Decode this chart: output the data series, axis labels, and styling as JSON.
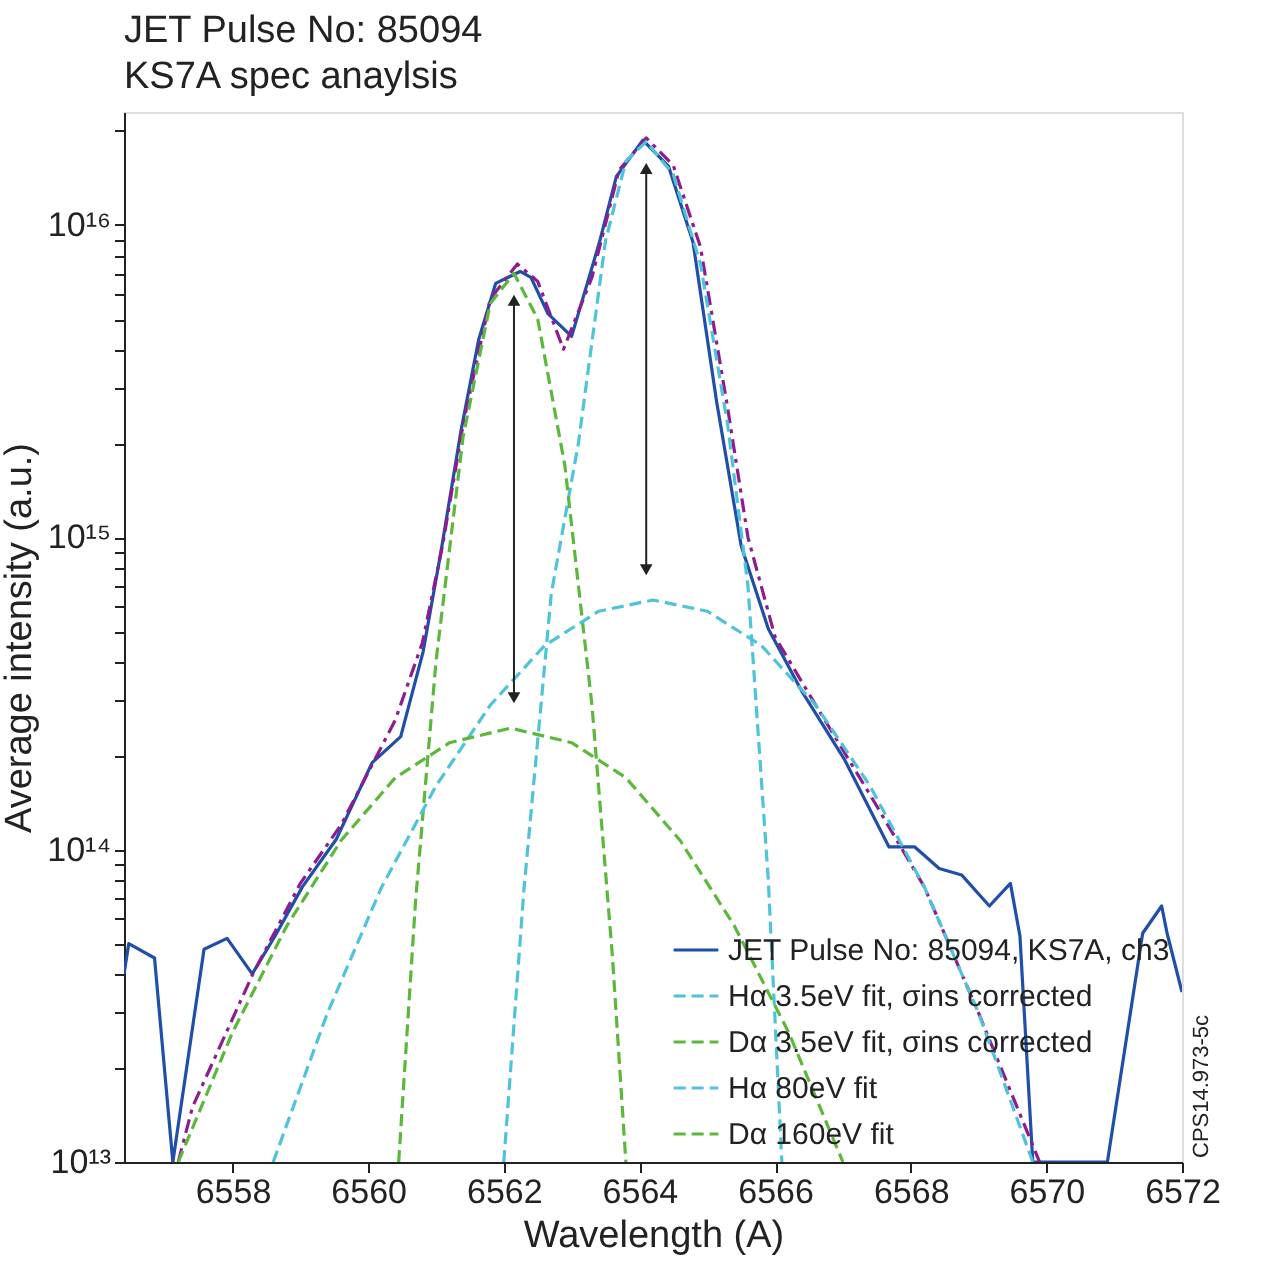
{
  "chart_data": {
    "type": "line",
    "title": "JET Pulse No: 85094",
    "subtitle": "KS7A spec anaylsis",
    "xlabel": "Wavelength (A)",
    "ylabel": "Average intensity (a.u.)",
    "log": "y",
    "grid": false,
    "legend": "bottom right",
    "xlim": [
      6556.4,
      6572
    ],
    "ylim": [
      10000000000000.0,
      2.3e+16
    ],
    "xticks": [
      6558,
      6560,
      6562,
      6564,
      6566,
      6568,
      6570,
      6572
    ],
    "yticks": [
      {
        "value": 10000000000000.0,
        "label": "10¹³"
      },
      {
        "value": 20000000000000.0,
        "label": null
      },
      {
        "value": 30000000000000.0,
        "label": null
      },
      {
        "value": 40000000000000.0,
        "label": null
      },
      {
        "value": 50000000000000.0,
        "label": null
      },
      {
        "value": 60000000000000.0,
        "label": null
      },
      {
        "value": 70000000000000.0,
        "label": null
      },
      {
        "value": 80000000000000.0,
        "label": null
      },
      {
        "value": 90000000000000.0,
        "label": null
      },
      {
        "value": 100000000000000.0,
        "label": "10¹⁴"
      },
      {
        "value": 200000000000000.0,
        "label": null
      },
      {
        "value": 300000000000000.0,
        "label": null
      },
      {
        "value": 400000000000000.0,
        "label": null
      },
      {
        "value": 500000000000000.0,
        "label": null
      },
      {
        "value": 600000000000000.0,
        "label": null
      },
      {
        "value": 700000000000000.0,
        "label": null
      },
      {
        "value": 800000000000000.0,
        "label": null
      },
      {
        "value": 900000000000000.0,
        "label": null
      },
      {
        "value": 1000000000000000.0,
        "label": "10¹⁵"
      },
      {
        "value": 2000000000000000.0,
        "label": null
      },
      {
        "value": 3000000000000000.0,
        "label": null
      },
      {
        "value": 4000000000000000.0,
        "label": null
      },
      {
        "value": 5000000000000000.0,
        "label": null
      },
      {
        "value": 6000000000000000.0,
        "label": null
      },
      {
        "value": 7000000000000000.0,
        "label": null
      },
      {
        "value": 8000000000000000.0,
        "label": null
      },
      {
        "value": 9000000000000000.0,
        "label": null
      },
      {
        "value": 1e+16,
        "label": "10¹⁶"
      },
      {
        "value": 2e+16,
        "label": null
      }
    ],
    "annotations": [
      "CPS14.973-5c"
    ],
    "series": [
      {
        "name": "JET Pulse No: 85094, KS7A, ch3",
        "line_style": "solid",
        "color": "#1f4fa8",
        "x": [
          6556.4,
          6556.47,
          6556.85,
          6557.12,
          6557.58,
          6557.92,
          6558.29,
          6558.63,
          6559.03,
          6559.53,
          6560.06,
          6560.48,
          6560.81,
          6561.07,
          6561.37,
          6561.63,
          6561.88,
          6562.24,
          6562.4,
          6562.65,
          6563.0,
          6563.41,
          6563.66,
          6564.05,
          6564.43,
          6564.79,
          6565.14,
          6565.5,
          6565.9,
          6566.4,
          6567.02,
          6567.68,
          6568.06,
          6568.42,
          6568.75,
          6569.16,
          6569.47,
          6569.61,
          6569.8,
          6570.9,
          6571.42,
          6571.7,
          6571.78,
          6572.0
        ],
        "values": [
          40000000000000.0,
          50000000000000.0,
          45000000000000.0,
          10000000000000.0,
          48000000000000.0,
          52000000000000.0,
          40000000000000.0,
          53000000000000.0,
          76000000000000.0,
          108000000000000.0,
          190000000000000.0,
          230000000000000.0,
          430000000000000.0,
          890000000000000.0,
          2200000000000000.0,
          4300000000000000.0,
          6500000000000000.0,
          7100000000000000.0,
          6800000000000000.0,
          5200000000000000.0,
          4400000000000000.0,
          8800000000000000.0,
          1.43e+16,
          1.87e+16,
          1.54e+16,
          8800000000000000.0,
          2700000000000000.0,
          940000000000000.0,
          510000000000000.0,
          320000000000000.0,
          195000000000000.0,
          102000000000000.0,
          102000000000000.0,
          87000000000000.0,
          83000000000000.0,
          66000000000000.0,
          78000000000000.0,
          53000000000000.0,
          10000000000000.0,
          10000000000000.0,
          54000000000000.0,
          66000000000000.0,
          54000000000000.0,
          35000000000000.0
        ]
      },
      {
        "line_style": "dashdot",
        "color": "#8e1c8e",
        "x": [
          6557.2,
          6557.41,
          6558.3,
          6559.0,
          6559.6,
          6560.4,
          6560.8,
          6561.1,
          6561.4,
          6561.8,
          6562.2,
          6562.5,
          6562.88,
          6563.3,
          6563.7,
          6564.1,
          6564.5,
          6564.9,
          6565.3,
          6565.6,
          6566.0,
          6566.6,
          6567.4,
          6568.2,
          6569.0,
          6569.9
        ],
        "values": [
          10000000000000.0,
          15000000000000.0,
          40000000000000.0,
          78000000000000.0,
          120000000000000.0,
          260000000000000.0,
          460000000000000.0,
          950000000000000.0,
          2300000000000000.0,
          5800000000000000.0,
          7500000000000000.0,
          6600000000000000.0,
          4000000000000000.0,
          6800000000000000.0,
          1.5e+16,
          1.9e+16,
          1.55e+16,
          8500000000000000.0,
          2600000000000000.0,
          1000000000000000.0,
          480000000000000.0,
          290000000000000.0,
          150000000000000.0,
          76000000000000.0,
          30000000000000.0,
          10000000000000.0
        ]
      },
      {
        "name": "Hα 3.5eV fit, σins corrected",
        "line_style": "dashed",
        "color": "#4ec3d9",
        "x": [
          6562.0,
          6562.3,
          6562.7,
          6563.1,
          6563.5,
          6563.8,
          6564.1,
          6564.5,
          6564.9,
          6565.3,
          6565.6,
          6565.9,
          6566.1
        ],
        "values": [
          10000000000000.0,
          76000000000000.0,
          660000000000000.0,
          2000000000000000.0,
          8900000000000000.0,
          1.6e+16,
          1.85e+16,
          1.45e+16,
          7500000000000000.0,
          2300000000000000.0,
          700000000000000.0,
          80000000000000.0,
          10000000000000.0
        ]
      },
      {
        "name": "Dα 3.5eV fit, σins corrected",
        "line_style": "dashed",
        "color": "#5cb83a",
        "x": [
          6560.45,
          6560.7,
          6561.0,
          6561.4,
          6561.8,
          6562.15,
          6562.5,
          6562.9,
          6563.3,
          6563.6,
          6563.8
        ],
        "values": [
          10000000000000.0,
          69000000000000.0,
          400000000000000.0,
          2100000000000000.0,
          5600000000000000.0,
          7000000000000000.0,
          5000000000000000.0,
          1700000000000000.0,
          290000000000000.0,
          46000000000000.0,
          10000000000000.0
        ]
      },
      {
        "name": "Hα 80eV fit",
        "line_style": "dashed",
        "color": "#4ec3d9",
        "x": [
          6558.6,
          6559.4,
          6560.2,
          6561.0,
          6561.8,
          6562.6,
          6563.4,
          6564.2,
          6565.0,
          6565.8,
          6566.6,
          6567.4,
          6568.2,
          6569.0,
          6569.8
        ],
        "values": [
          10000000000000.0,
          30000000000000.0,
          76000000000000.0,
          160000000000000.0,
          290000000000000.0,
          450000000000000.0,
          580000000000000.0,
          630000000000000.0,
          580000000000000.0,
          450000000000000.0,
          290000000000000.0,
          160000000000000.0,
          76000000000000.0,
          30000000000000.0,
          10000000000000.0
        ]
      },
      {
        "name": "Dα 160eV fit",
        "line_style": "dashed",
        "color": "#5cb83a",
        "x": [
          6557.2,
          6558.0,
          6558.8,
          6559.6,
          6560.4,
          6561.2,
          6562.1,
          6563.0,
          6563.8,
          6564.6,
          6565.4,
          6566.2,
          6567.0
        ],
        "values": [
          10000000000000.0,
          26000000000000.0,
          57000000000000.0,
          107000000000000.0,
          170000000000000.0,
          220000000000000.0,
          245000000000000.0,
          220000000000000.0,
          170000000000000.0,
          107000000000000.0,
          57000000000000.0,
          26000000000000.0,
          10000000000000.0
        ]
      }
    ]
  }
}
